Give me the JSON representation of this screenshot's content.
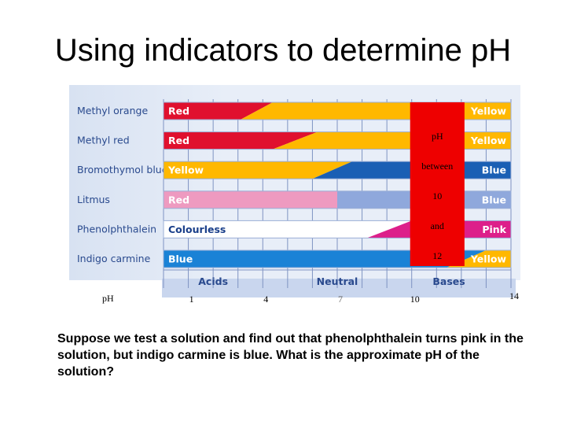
{
  "slide": {
    "title": "Using indicators to determine pH",
    "question": "Suppose we test a solution and find out that phenolphthalein turns pink in the solution, but indigo carmine is blue.  What is the approximate pH of the solution?"
  },
  "chart_data": {
    "type": "diagram",
    "x_axis": {
      "min": 0,
      "max": 14,
      "label": "pH",
      "ticks": [
        "1",
        "4",
        "7",
        "10",
        "14"
      ],
      "tick_values": [
        1,
        4,
        7,
        10,
        14
      ]
    },
    "regions": [
      "Acids",
      "Neutral",
      "Bases"
    ],
    "indicators": [
      {
        "name": "Methyl orange",
        "low_label": "Red",
        "high_label": "Yellow",
        "low_color": "#e0102e",
        "high_color": "#ffb800",
        "transition": [
          3.1,
          4.4
        ]
      },
      {
        "name": "Methyl red",
        "low_label": "Red",
        "high_label": "Yellow",
        "low_color": "#e0102e",
        "high_color": "#ffb800",
        "transition": [
          4.4,
          6.2
        ]
      },
      {
        "name": "Bromothymol blue",
        "low_label": "Yellow",
        "high_label": "Blue",
        "low_color": "#ffb800",
        "high_color": "#1a5fb4",
        "transition": [
          6.0,
          7.6
        ]
      },
      {
        "name": "Litmus",
        "low_label": "Red",
        "high_label": "Blue",
        "low_color": "#ee9ac0",
        "high_color": "#8fa8dc",
        "transition": [
          7.0,
          7.0
        ]
      },
      {
        "name": "Phenolphthalein",
        "low_label": "Colourless",
        "high_label": "Pink",
        "low_color": "#ffffff",
        "high_color": "#dd1f8a",
        "transition": [
          8.2,
          10.0
        ]
      },
      {
        "name": "Indigo carmine",
        "low_label": "Blue",
        "high_label": "Yellow",
        "low_color": "#1a82d6",
        "high_color": "#ffb800",
        "transition": [
          11.4,
          13.0
        ]
      }
    ],
    "highlight": {
      "range": [
        10,
        12
      ],
      "color": "#ee0000",
      "lines": [
        "pH",
        "between",
        "10",
        "and",
        "12"
      ]
    }
  }
}
